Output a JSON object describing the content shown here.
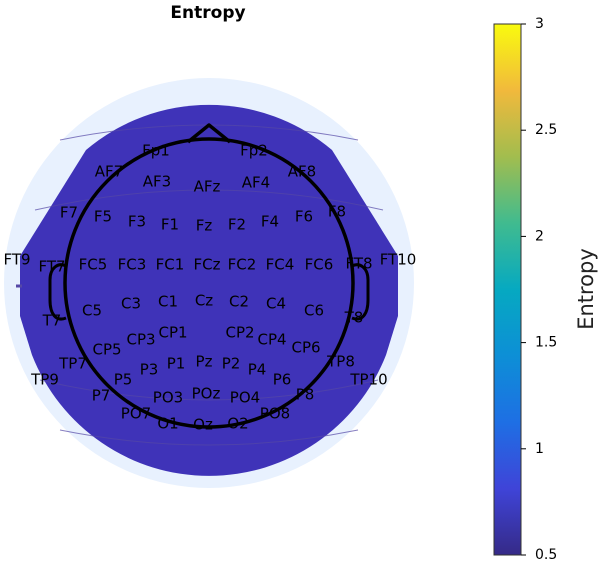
{
  "chart_data": {
    "type": "heatmap",
    "subtype": "eeg-topographic-map",
    "title": "Entropy",
    "colorbar": {
      "label": "Entropy",
      "min": 0.5,
      "max": 3,
      "ticks": [
        "0.5",
        "1",
        "1.5",
        "2",
        "2.5",
        "3"
      ],
      "colormap": "parula"
    },
    "fill_color": "#3f33b8",
    "uniform_value": 0.5,
    "electrodes": [
      "Fp1",
      "Fp2",
      "AF7",
      "AF3",
      "AFz",
      "AF4",
      "AF8",
      "F7",
      "F5",
      "F3",
      "F1",
      "Fz",
      "F2",
      "F4",
      "F6",
      "F8",
      "FT9",
      "FT7",
      "FC5",
      "FC3",
      "FC1",
      "FCz",
      "FC2",
      "FC4",
      "FC6",
      "FT8",
      "FT10",
      "T7",
      "C5",
      "C3",
      "C1",
      "Cz",
      "C2",
      "C4",
      "C6",
      "T8",
      "CP5",
      "CP3",
      "CP1",
      "CP2",
      "CP4",
      "CP6",
      "TP7",
      "TP8",
      "TP9",
      "TP10",
      "P7",
      "P5",
      "P3",
      "P1",
      "Pz",
      "P2",
      "P4",
      "P6",
      "P8",
      "PO7",
      "PO3",
      "POz",
      "PO4",
      "PO8",
      "O1",
      "Oz",
      "O2"
    ]
  }
}
